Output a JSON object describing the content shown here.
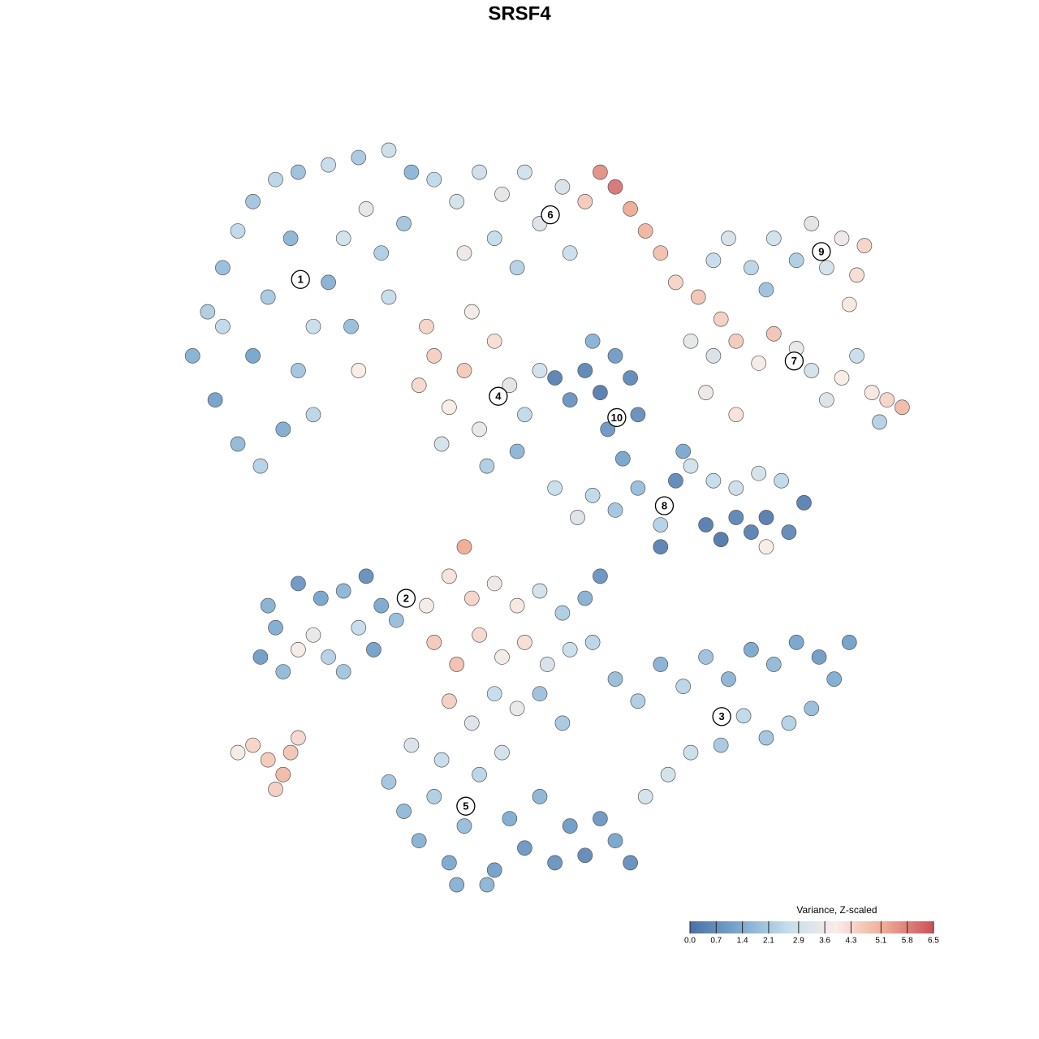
{
  "chart_data": {
    "type": "scatter",
    "title": "SRSF4",
    "xlim": [
      0,
      100
    ],
    "ylim": [
      0,
      100
    ],
    "x": [
      4,
      6,
      8,
      10,
      12,
      15,
      18,
      22,
      26,
      30,
      33,
      7,
      10,
      13,
      16,
      18,
      20,
      22,
      14,
      24,
      27,
      29,
      25,
      30,
      12,
      20,
      26,
      32,
      8,
      17,
      36,
      39,
      42,
      45,
      48,
      50,
      44,
      40,
      47,
      53,
      56,
      58,
      60,
      62,
      64,
      66,
      68,
      71,
      74,
      54,
      34,
      36,
      38,
      40,
      42,
      44,
      46,
      48,
      50,
      37,
      43,
      47,
      35,
      41,
      52,
      54,
      56,
      58,
      60,
      62,
      59,
      61,
      63,
      57,
      73,
      75,
      78,
      81,
      84,
      86,
      88,
      90,
      92,
      93,
      91,
      80,
      70,
      73,
      76,
      79,
      81,
      84,
      86,
      88,
      90,
      92,
      94,
      96,
      98,
      95,
      72,
      76,
      52,
      55,
      57,
      60,
      63,
      66,
      68,
      69,
      70,
      73,
      76,
      79,
      82,
      72,
      74,
      76,
      78,
      80,
      83,
      85,
      80,
      66,
      13,
      15,
      16,
      18,
      20,
      22,
      24,
      21,
      18,
      24,
      27,
      29,
      31,
      26,
      28,
      14,
      10,
      12,
      14,
      16,
      17,
      18,
      15,
      35,
      38,
      41,
      44,
      47,
      50,
      53,
      56,
      58,
      36,
      39,
      42,
      45,
      48,
      51,
      54,
      57,
      38,
      41,
      44,
      47,
      50,
      53,
      40,
      60,
      63,
      66,
      69,
      72,
      75,
      78,
      81,
      84,
      87,
      89,
      86,
      83,
      80,
      77,
      74,
      70,
      67,
      64,
      91,
      30,
      32,
      34,
      36,
      38,
      40,
      42,
      44,
      46,
      48,
      50,
      52,
      54,
      56,
      58,
      60,
      37,
      45,
      33,
      43,
      39,
      62
    ],
    "y": [
      72,
      78,
      84,
      89,
      93,
      96,
      97,
      98,
      99,
      100,
      97,
      66,
      60,
      57,
      62,
      70,
      76,
      82,
      80,
      88,
      92,
      86,
      76,
      80,
      72,
      64,
      70,
      90,
      76,
      88,
      96,
      93,
      97,
      94,
      97,
      90,
      88,
      86,
      84,
      95,
      93,
      97,
      95,
      92,
      89,
      86,
      82,
      80,
      77,
      86,
      68,
      72,
      65,
      70,
      62,
      74,
      68,
      64,
      70,
      60,
      57,
      59,
      76,
      78,
      69,
      66,
      70,
      67,
      72,
      69,
      62,
      58,
      64,
      74,
      85,
      88,
      84,
      88,
      85,
      90,
      84,
      88,
      83,
      87,
      79,
      81,
      74,
      72,
      74,
      71,
      75,
      73,
      70,
      66,
      69,
      72,
      67,
      66,
      65,
      63,
      67,
      64,
      54,
      50,
      53,
      51,
      54,
      49,
      55,
      59,
      57,
      55,
      54,
      56,
      55,
      49,
      47,
      50,
      48,
      50,
      48,
      52,
      46,
      46,
      31,
      35,
      29,
      32,
      34,
      31,
      29,
      39,
      41,
      40,
      42,
      38,
      36,
      35,
      32,
      38,
      18,
      19,
      17,
      15,
      18,
      20,
      13,
      38,
      42,
      39,
      41,
      38,
      40,
      37,
      39,
      42,
      33,
      30,
      34,
      31,
      33,
      30,
      32,
      33,
      25,
      22,
      26,
      24,
      26,
      22,
      46,
      28,
      25,
      30,
      27,
      31,
      28,
      32,
      30,
      33,
      31,
      28,
      24,
      22,
      20,
      23,
      19,
      18,
      15,
      12,
      33,
      14,
      10,
      6,
      12,
      3,
      8,
      15,
      2,
      9,
      5,
      12,
      3,
      8,
      4,
      9,
      6,
      17,
      18,
      19,
      0,
      0,
      3
    ],
    "values": [
      1.5,
      2.2,
      1.8,
      2.5,
      2.0,
      2.4,
      1.9,
      2.6,
      2.1,
      2.8,
      1.6,
      1.1,
      1.7,
      2.3,
      1.4,
      2.0,
      2.7,
      1.5,
      2.1,
      2.9,
      3.4,
      2.2,
      1.8,
      2.6,
      1.2,
      2.4,
      3.9,
      2.0,
      2.5,
      1.6,
      2.5,
      3.0,
      2.8,
      3.4,
      2.9,
      3.2,
      2.6,
      3.6,
      2.3,
      3.1,
      4.6,
      5.6,
      6.0,
      5.2,
      5.0,
      4.8,
      4.4,
      4.7,
      4.5,
      2.7,
      4.3,
      4.5,
      3.9,
      4.6,
      3.5,
      4.2,
      3.3,
      2.5,
      2.9,
      3.0,
      2.2,
      1.6,
      4.4,
      3.7,
      0.4,
      0.8,
      0.5,
      0.3,
      1.0,
      0.6,
      0.9,
      1.2,
      0.7,
      1.5,
      2.6,
      3.0,
      2.4,
      2.9,
      2.2,
      3.3,
      3.0,
      3.6,
      4.2,
      4.4,
      4.0,
      1.9,
      3.4,
      3.1,
      4.6,
      3.8,
      4.7,
      3.5,
      3.0,
      3.2,
      3.9,
      2.7,
      4.0,
      4.4,
      4.9,
      2.3,
      3.6,
      4.1,
      2.7,
      3.2,
      2.5,
      2.0,
      1.8,
      2.3,
      0.6,
      1.3,
      2.9,
      2.6,
      2.8,
      3.0,
      2.5,
      0.3,
      0.2,
      0.5,
      0.4,
      0.3,
      0.6,
      0.4,
      3.9,
      0.4,
      1.0,
      1.4,
      1.7,
      3.8,
      3.5,
      2.3,
      2.0,
      1.2,
      0.9,
      1.6,
      0.7,
      1.3,
      1.8,
      2.6,
      1.1,
      1.5,
      3.8,
      4.4,
      4.6,
      4.9,
      4.7,
      4.3,
      4.5,
      3.8,
      4.1,
      4.4,
      3.6,
      4.0,
      2.9,
      2.2,
      1.5,
      0.8,
      4.6,
      4.8,
      4.3,
      3.7,
      4.2,
      3.1,
      2.7,
      2.4,
      4.5,
      3.2,
      2.6,
      3.5,
      1.9,
      2.1,
      5.2,
      1.8,
      2.2,
      1.5,
      2.4,
      1.9,
      1.6,
      1.3,
      1.7,
      1.2,
      1.0,
      1.4,
      1.8,
      2.3,
      2.0,
      2.5,
      2.1,
      2.7,
      2.9,
      3.0,
      1.1,
      2.0,
      1.7,
      1.5,
      2.2,
      1.3,
      1.8,
      2.4,
      1.1,
      1.4,
      0.9,
      1.6,
      0.8,
      1.0,
      0.6,
      0.9,
      1.2,
      2.6,
      2.9,
      3.1,
      1.6,
      1.5,
      0.7
    ],
    "cluster_labels": [
      {
        "text": "1",
        "x": 18.3,
        "y": 82.4
      },
      {
        "text": "2",
        "x": 32.3,
        "y": 39.0
      },
      {
        "text": "3",
        "x": 74.1,
        "y": 22.9
      },
      {
        "text": "4",
        "x": 44.5,
        "y": 66.5
      },
      {
        "text": "5",
        "x": 40.2,
        "y": 10.7
      },
      {
        "text": "6",
        "x": 51.4,
        "y": 91.2
      },
      {
        "text": "7",
        "x": 83.7,
        "y": 71.3
      },
      {
        "text": "8",
        "x": 66.5,
        "y": 51.6
      },
      {
        "text": "9",
        "x": 87.3,
        "y": 86.2
      },
      {
        "text": "10",
        "x": 60.2,
        "y": 63.6
      }
    ],
    "colorbar": {
      "title": "Variance, Z-scaled",
      "range": [
        0,
        6.5
      ],
      "colors": [
        "#4a6fa5",
        "#7aa8cf",
        "#c5dceb",
        "#f9ece6",
        "#eeab95",
        "#c9515d"
      ],
      "ticks": [
        {
          "value": 0,
          "label": "0.0"
        },
        0.7,
        1.4,
        2.1,
        2.9,
        3.6,
        4.3,
        5.1,
        5.8,
        6.5
      ]
    }
  }
}
